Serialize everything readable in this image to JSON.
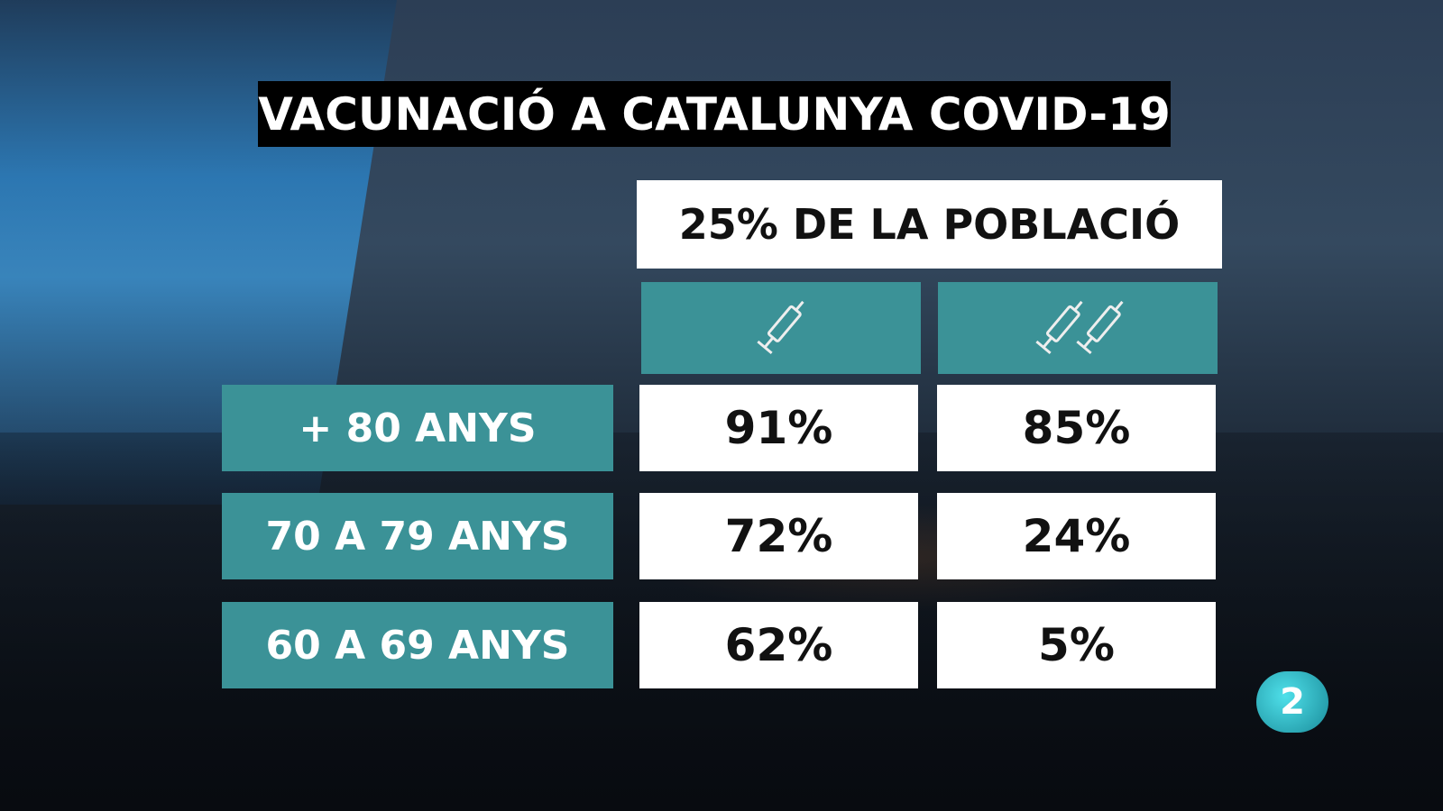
{
  "header": {
    "title": "VACUNACIÓ A CATALUNYA COVID-19",
    "subtitle": "25% DE LA POBLACIÓ"
  },
  "table": {
    "rows": [
      [
        "+ 80 ANYS",
        "91%",
        "85%"
      ],
      [
        "70 A 79 ANYS",
        "72%",
        "24%"
      ],
      [
        "60 A 69 ANYS",
        "62%",
        "5%"
      ]
    ]
  },
  "logo": "2"
}
